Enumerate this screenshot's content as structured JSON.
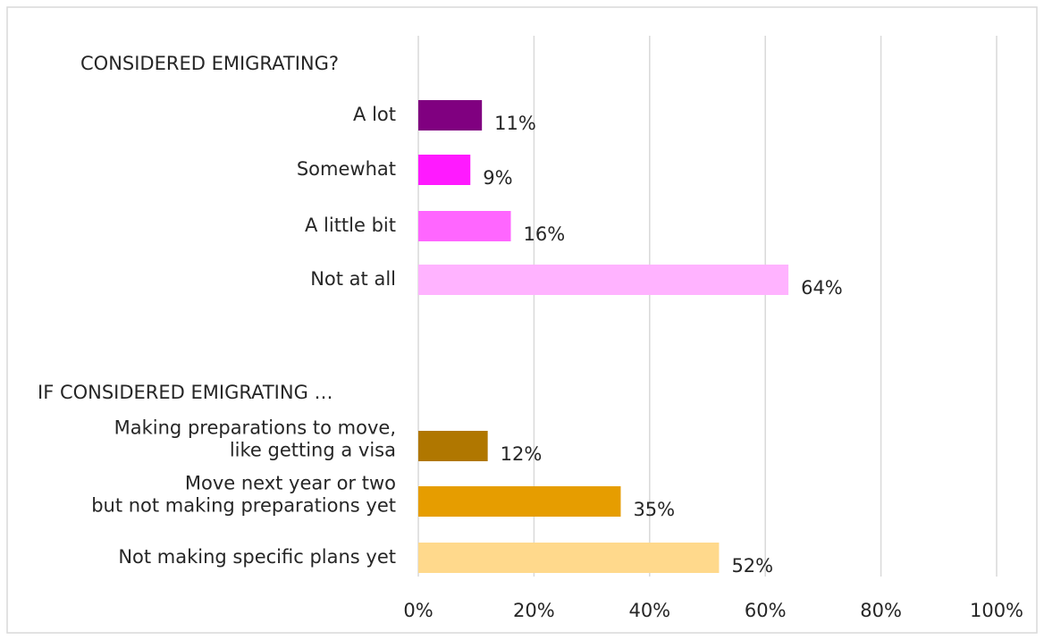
{
  "chart_data": {
    "type": "bar",
    "orientation": "horizontal",
    "groups": [
      {
        "header": "CONSIDERED EMIGRATING?",
        "items": [
          {
            "label": [
              "A lot"
            ],
            "value": 11,
            "value_label": "11%",
            "color": "#800080"
          },
          {
            "label": [
              "Somewhat"
            ],
            "value": 9,
            "value_label": "9%",
            "color": "#ff1aff"
          },
          {
            "label": [
              "A little bit"
            ],
            "value": 16,
            "value_label": "16%",
            "color": "#ff66ff"
          },
          {
            "label": [
              "Not at all"
            ],
            "value": 64,
            "value_label": "64%",
            "color": "#ffb3ff"
          }
        ]
      },
      {
        "header": "IF CONSIDERED EMIGRATING …",
        "items": [
          {
            "label": [
              "Making preparations to move,",
              "like getting a visa"
            ],
            "value": 12,
            "value_label": "12%",
            "color": "#b07700"
          },
          {
            "label": [
              "Move next year or two",
              "but not making preparations yet"
            ],
            "value": 35,
            "value_label": "35%",
            "color": "#e69d00"
          },
          {
            "label": [
              "Not making specific plans yet"
            ],
            "value": 52,
            "value_label": "52%",
            "color": "#ffd98c"
          }
        ]
      }
    ],
    "xlim": [
      0,
      100
    ],
    "xticks": [
      {
        "value": 0,
        "label": "0%"
      },
      {
        "value": 20,
        "label": "20%"
      },
      {
        "value": 40,
        "label": "40%"
      },
      {
        "value": 60,
        "label": "60%"
      },
      {
        "value": 80,
        "label": "80%"
      },
      {
        "value": 100,
        "label": "100%"
      }
    ],
    "grid": true,
    "legend": "none"
  }
}
